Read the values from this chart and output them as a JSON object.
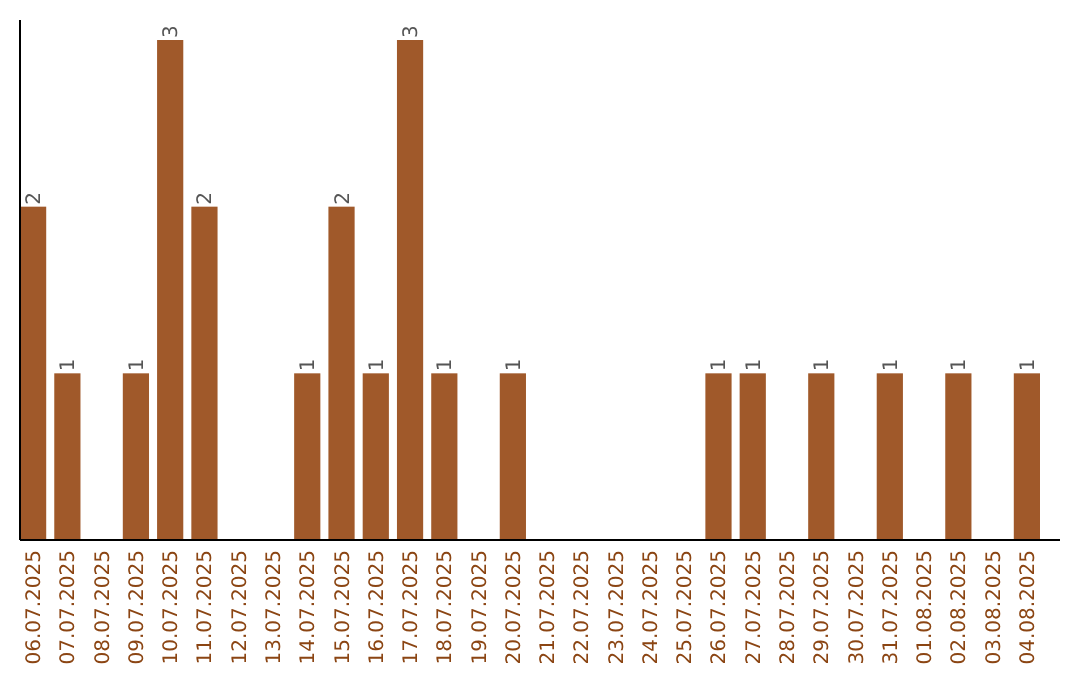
{
  "chart_data": {
    "type": "bar",
    "categories": [
      "06.07.2025",
      "07.07.2025",
      "08.07.2025",
      "09.07.2025",
      "10.07.2025",
      "11.07.2025",
      "12.07.2025",
      "13.07.2025",
      "14.07.2025",
      "15.07.2025",
      "16.07.2025",
      "17.07.2025",
      "18.07.2025",
      "19.07.2025",
      "20.07.2025",
      "21.07.2025",
      "22.07.2025",
      "23.07.2025",
      "24.07.2025",
      "25.07.2025",
      "26.07.2025",
      "27.07.2025",
      "28.07.2025",
      "29.07.2025",
      "30.07.2025",
      "31.07.2025",
      "01.08.2025",
      "02.08.2025",
      "03.08.2025",
      "04.08.2025"
    ],
    "values": [
      2,
      1,
      0,
      1,
      3,
      2,
      0,
      0,
      1,
      2,
      1,
      3,
      1,
      0,
      1,
      0,
      0,
      0,
      0,
      0,
      1,
      1,
      0,
      1,
      0,
      1,
      0,
      1,
      0,
      1
    ],
    "value_labels": [
      "2",
      "1",
      null,
      "1",
      "3",
      "2",
      null,
      null,
      "1",
      "2",
      "1",
      "3",
      "1",
      null,
      "1",
      null,
      null,
      null,
      null,
      null,
      "1",
      "1",
      null,
      "1",
      null,
      "1",
      null,
      "1",
      null,
      "1"
    ],
    "color": "#a0592a"
  }
}
